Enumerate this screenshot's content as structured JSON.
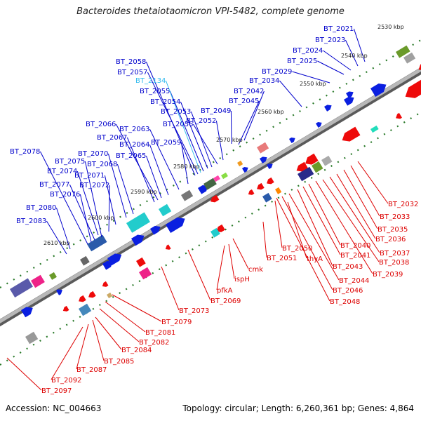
{
  "title": "Bacteroides thetaiotaomicron VPI-5482, complete genome",
  "footer": {
    "accession": "Accession: NC_004663",
    "summary": "Topology: circular; Length: 6,260,361 bp; Genes: 4,864"
  },
  "colors": {
    "forward_label": "#0000cc",
    "reverse_label": "#dd0000",
    "highlight_label": "#33bbee",
    "backbone": "#888888",
    "tick": "#2a7a2a"
  },
  "scale_labels": [
    "2530 kbp",
    "2540 kbp",
    "2550 kbp",
    "2560 kbp",
    "2570 kbp",
    "2580 kbp",
    "2590 kbp",
    "2600 kbp",
    "2610 kbp"
  ],
  "forward_genes": [
    "BT_2021",
    "BT_2023",
    "BT_2024",
    "BT_2025",
    "BT_2029",
    "BT_2034",
    "BT_2042",
    "BT_2045",
    "BT_2049",
    "BT_2052",
    "BT_2056",
    "BT_2053",
    "BT_2054",
    "BT_2055",
    "BT_2134",
    "BT_2057",
    "BT_2058",
    "BT_2059",
    "BT_2063",
    "BT_2064",
    "BT_2065",
    "BT_2066",
    "BT_2067",
    "BT_2068",
    "BT_2070",
    "BT_2071",
    "BT_2072",
    "BT_2074",
    "BT_2075",
    "BT_2076",
    "BT_2077",
    "BT_2078",
    "BT_2080",
    "BT_2083"
  ],
  "reverse_genes": [
    "BT_2032",
    "BT_2033",
    "BT_2035",
    "BT_2036",
    "BT_2037",
    "BT_2038",
    "BT_2039",
    "BT_2040",
    "BT_2041",
    "BT_2043",
    "BT_2044",
    "BT_2046",
    "BT_2048",
    "BT_2050",
    "thyA",
    "BT_2051",
    "cmk",
    "ispH",
    "pfkA",
    "BT_2069",
    "BT_2073",
    "BT_2079",
    "BT_2081",
    "BT_2082",
    "BT_2084",
    "BT_2085",
    "BT_2087",
    "BT_2092",
    "BT_2097"
  ]
}
